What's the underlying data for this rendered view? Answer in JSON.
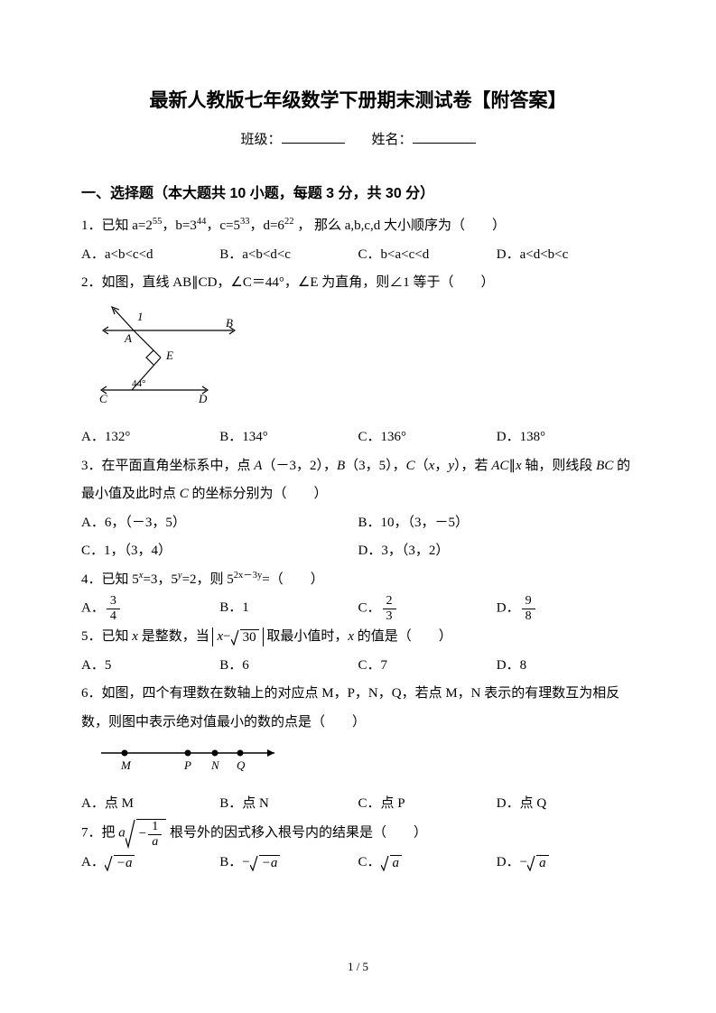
{
  "title": "最新人教版七年级数学下册期末测试卷【附答案】",
  "header": {
    "class_label": "班级：",
    "name_label": "姓名："
  },
  "section1": {
    "heading": "一、选择题（本大题共 10 小题，每题 3 分，共 30 分）",
    "q1": {
      "stem_prefix": "1．已知 a=2",
      "exp1": "55",
      "sep1": "，b=3",
      "exp2": "44",
      "sep2": "，c=5",
      "exp3": "33",
      "sep3": "，d=6",
      "exp4": "22",
      "stem_suffix": " ， 那么 a,b,c,d 大小顺序为（　　）",
      "A": "A．a<b<c<d",
      "B": "B．a<b<d<c",
      "C": "C．b<a<c<d",
      "D": "D．a<d<b<c"
    },
    "q2": {
      "stem": "2．如图，直线 AB∥CD，∠C＝44°，∠E 为直角，则∠1 等于（　　）",
      "figure": {
        "labels": {
          "A": "A",
          "B": "B",
          "E": "E",
          "C": "C",
          "D": "D",
          "angle1": "1",
          "angle44": "44°"
        },
        "stroke": "#000000"
      },
      "A": "A．132°",
      "B": "B．134°",
      "C": "C．136°",
      "D": "D．138°"
    },
    "q3": {
      "stem": "3．在平面直角坐标系中，点 <span class=\"italic\">A</span>（－3，2），<span class=\"italic\">B</span>（3，5），<span class=\"italic\">C</span>（<span class=\"italic\">x</span>，<span class=\"italic\">y</span>），若 <span class=\"italic\">AC</span>∥<span class=\"italic\">x</span> 轴，则线段 <span class=\"italic\">BC</span> 的最小值及此时点 <span class=\"italic\">C</span> 的坐标分别为（　　）",
      "A": "A．6，（－3，5）",
      "B": "B．10，（3，－5）",
      "C": "C．1，（3，4）",
      "D": "D．3，（3，2）"
    },
    "q4": {
      "stem_prefix": "4．已知 5",
      "expx": "x",
      "mid1": "=3，5",
      "expy": "y",
      "mid2": "=2，则 5",
      "exp2x3y": "2x－3y",
      "stem_suffix": "=（　　）",
      "A_label": "A．",
      "A_num": "3",
      "A_den": "4",
      "B": "B．1",
      "C_label": "C．",
      "C_num": "2",
      "C_den": "3",
      "D_label": "D．",
      "D_num": "9",
      "D_den": "8"
    },
    "q5": {
      "prefix": "5．已知 <span class=\"italic\">x</span> 是整数，当",
      "abs_x": "x",
      "minus": "−",
      "rad30": "30",
      "suffix": "取最小值时，<span class=\"italic\">x</span> 的值是（　　）",
      "A": "A．5",
      "B": "B．6",
      "C": "C．7",
      "D": "D．8"
    },
    "q6": {
      "stem": "6．如图，四个有理数在数轴上的对应点 M，P，N，Q，若点 M，N 表示的有理数互为相反数，则图中表示绝对值最小的数的点是（　　）",
      "figure": {
        "M": "M",
        "P": "P",
        "N": "N",
        "Q": "Q",
        "stroke": "#000000"
      },
      "A": "A．点 M",
      "B": "B．点 N",
      "C": "C．点 P",
      "D": "D．点 Q"
    },
    "q7": {
      "prefix": "7．把",
      "a": "a",
      "rad_num": "1",
      "rad_den": "a",
      "neg": "−",
      "suffix": "根号外的因式移入根号内的结果是（　　）",
      "A_label": "A．",
      "A_rad": "−a",
      "B_label": "B．",
      "B_neg": "−",
      "B_rad": "−a",
      "C_label": "C．",
      "C_rad": "a",
      "D_label": "D．",
      "D_neg": "−",
      "D_rad": "a"
    }
  },
  "footer": {
    "page": "1 / 5"
  }
}
